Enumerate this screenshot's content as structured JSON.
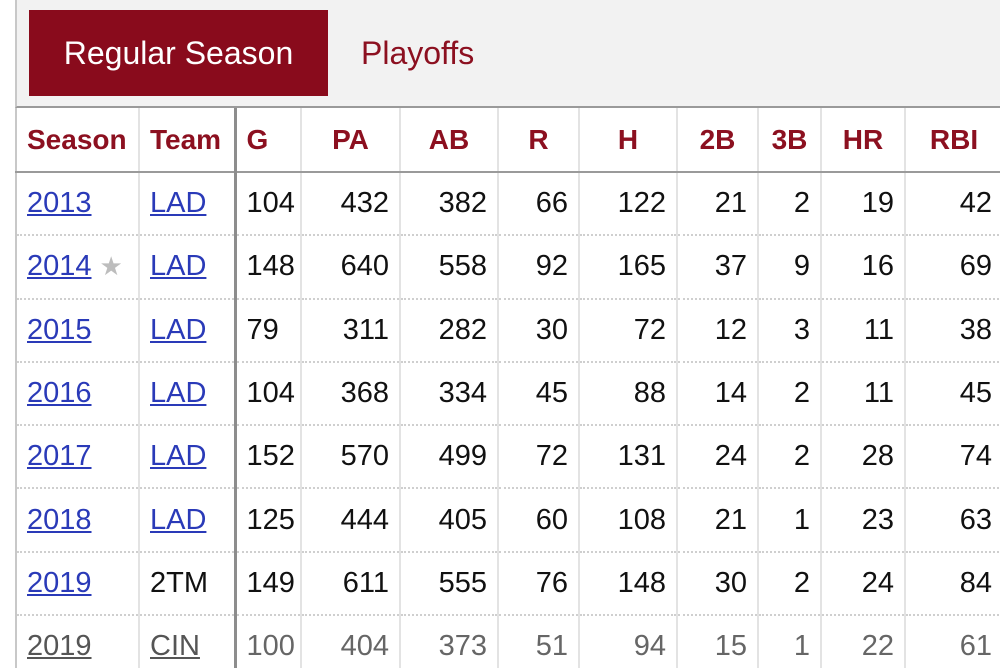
{
  "tabs": [
    {
      "label": "Regular Season",
      "active": true
    },
    {
      "label": "Playoffs",
      "active": false
    }
  ],
  "colors": {
    "accent": "#890b1c",
    "header_text": "#8c1020",
    "link": "#2a3ab8"
  },
  "table": {
    "columns": [
      "Season",
      "Team",
      "G",
      "PA",
      "AB",
      "R",
      "H",
      "2B",
      "3B",
      "HR",
      "RBI"
    ],
    "rows": [
      {
        "season": "2013",
        "star": false,
        "team": "LAD",
        "team_link": true,
        "g": "104",
        "pa": "432",
        "ab": "382",
        "r": "66",
        "h": "122",
        "doubles": "21",
        "triples": "2",
        "hr": "19",
        "rbi": "42"
      },
      {
        "season": "2014",
        "star": true,
        "star_icon": "★",
        "team": "LAD",
        "team_link": true,
        "g": "148",
        "pa": "640",
        "ab": "558",
        "r": "92",
        "h": "165",
        "doubles": "37",
        "triples": "9",
        "hr": "16",
        "rbi": "69"
      },
      {
        "season": "2015",
        "star": false,
        "team": "LAD",
        "team_link": true,
        "g": "79",
        "pa": "311",
        "ab": "282",
        "r": "30",
        "h": "72",
        "doubles": "12",
        "triples": "3",
        "hr": "11",
        "rbi": "38"
      },
      {
        "season": "2016",
        "star": false,
        "team": "LAD",
        "team_link": true,
        "g": "104",
        "pa": "368",
        "ab": "334",
        "r": "45",
        "h": "88",
        "doubles": "14",
        "triples": "2",
        "hr": "11",
        "rbi": "45"
      },
      {
        "season": "2017",
        "star": false,
        "team": "LAD",
        "team_link": true,
        "g": "152",
        "pa": "570",
        "ab": "499",
        "r": "72",
        "h": "131",
        "doubles": "24",
        "triples": "2",
        "hr": "28",
        "rbi": "74"
      },
      {
        "season": "2018",
        "star": false,
        "team": "LAD",
        "team_link": true,
        "g": "125",
        "pa": "444",
        "ab": "405",
        "r": "60",
        "h": "108",
        "doubles": "21",
        "triples": "1",
        "hr": "23",
        "rbi": "63"
      },
      {
        "season": "2019",
        "star": false,
        "team": "2TM",
        "team_link": false,
        "g": "149",
        "pa": "611",
        "ab": "555",
        "r": "76",
        "h": "148",
        "doubles": "30",
        "triples": "2",
        "hr": "24",
        "rbi": "84"
      },
      {
        "season": "2019",
        "star": false,
        "team": "CIN",
        "team_link": true,
        "faded": true,
        "g": "100",
        "pa": "404",
        "ab": "373",
        "r": "51",
        "h": "94",
        "doubles": "15",
        "triples": "1",
        "hr": "22",
        "rbi": "61"
      }
    ]
  }
}
